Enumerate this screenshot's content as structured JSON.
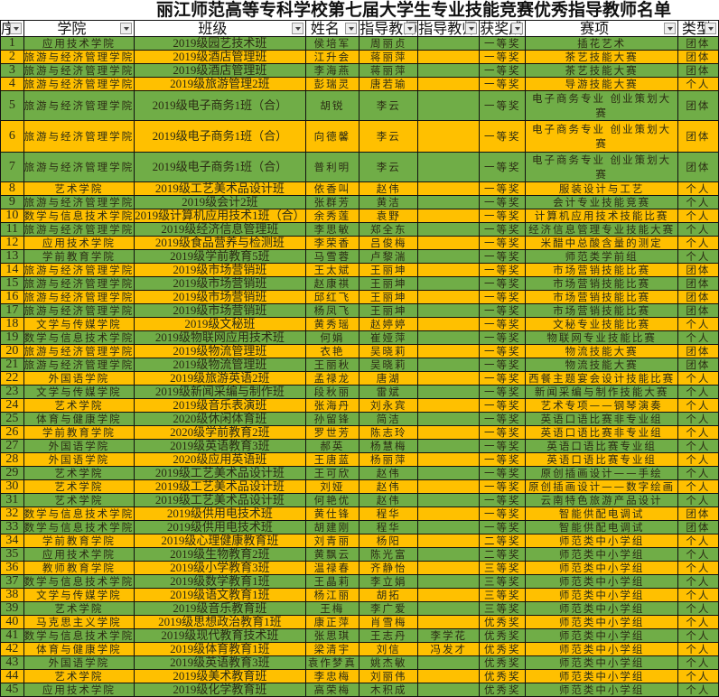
{
  "title": "丽江师范高等专科学校第七届大学生专业技能竞赛优秀指导教师名单",
  "colors": {
    "odd_row": "#70AD47",
    "even_row": "#FFC000"
  },
  "headers": [
    "序",
    "学院",
    "班级",
    "姓名",
    "指导教师",
    "指导教师",
    "获奖成",
    "赛项",
    "类型"
  ],
  "rows": [
    [
      "1",
      "应用技术学院",
      "2019级园艺技术班",
      "侯培军",
      "周丽贞",
      "",
      "一等奖",
      "插花艺术",
      "团体"
    ],
    [
      "2",
      "旅游与经济管理学院",
      "2019级酒店管理班",
      "江升会",
      "蒋丽萍",
      "",
      "一等奖",
      "茶艺技能大赛",
      "团体"
    ],
    [
      "3",
      "旅游与经济管理学院",
      "2019级酒店管理班",
      "李海燕",
      "蒋丽萍",
      "",
      "一等奖",
      "茶艺技能大赛",
      "团体"
    ],
    [
      "4",
      "旅游与经济管理学院",
      "2019级旅游管理2班",
      "彭瑞灵",
      "唐若瑜",
      "",
      "一等奖",
      "导游技能大赛",
      "个人"
    ],
    [
      "5",
      "旅游与经济管理学院",
      "2019级电子商务1班（合）",
      "胡锐",
      "李云",
      "",
      "一等奖",
      "电子商务专业 创业策划大赛",
      "团体"
    ],
    [
      "6",
      "旅游与经济管理学院",
      "2019级电子商务1班（合）",
      "向德馨",
      "李云",
      "",
      "一等奖",
      "电子商务专业 创业策划大赛",
      "团体"
    ],
    [
      "7",
      "旅游与经济管理学院",
      "2019级电子商务1班（合）",
      "普利明",
      "李云",
      "",
      "一等奖",
      "电子商务专业 创业策划大赛",
      "团体"
    ],
    [
      "8",
      "艺术学院",
      "2019级工艺美术品设计班",
      "依香叫",
      "赵伟",
      "",
      "一等奖",
      "服装设计与工艺",
      "个人"
    ],
    [
      "9",
      "旅游与经济管理学院",
      "2019级会计2班",
      "张群芳",
      "黄洁",
      "",
      "一等奖",
      "会计专业技能竞赛",
      "个人"
    ],
    [
      "10",
      "数学与信息技术学院",
      "2019级计算机应用技术1班（合）",
      "余秀莲",
      "袁野",
      "",
      "一等奖",
      "计算机应用技术技能比赛",
      "个人"
    ],
    [
      "11",
      "旅游与经济管理学院",
      "2019级经济信息管理班",
      "李思敏",
      "郑全东",
      "",
      "一等奖",
      "经济信息管理专业技能大赛",
      "个人"
    ],
    [
      "12",
      "应用技术学院",
      "2019级食品营养与检测班",
      "李荣香",
      "吕俊梅",
      "",
      "一等奖",
      "米醋中总酸含量的测定",
      "个人"
    ],
    [
      "13",
      "学前教育学院",
      "2019级学前教育5班",
      "马雪蓉",
      "卢黎湍",
      "",
      "一等奖",
      "师范类学前组",
      "个人"
    ],
    [
      "14",
      "旅游与经济管理学院",
      "2019级市场营销班",
      "王太斌",
      "王丽坤",
      "",
      "一等奖",
      "市场营销技能比赛",
      "团体"
    ],
    [
      "15",
      "旅游与经济管理学院",
      "2019级市场营销班",
      "赵康祺",
      "王丽坤",
      "",
      "一等奖",
      "市场营销技能比赛",
      "团体"
    ],
    [
      "16",
      "旅游与经济管理学院",
      "2019级市场营销班",
      "邱红飞",
      "王丽坤",
      "",
      "一等奖",
      "市场营销技能比赛",
      "团体"
    ],
    [
      "17",
      "旅游与经济管理学院",
      "2019级市场营销班",
      "杨凤飞",
      "王丽坤",
      "",
      "一等奖",
      "市场营销技能比赛",
      "团体"
    ],
    [
      "18",
      "文学与传媒学院",
      "2019级文秘班",
      "黄秀瑶",
      "赵婷婷",
      "",
      "一等奖",
      "文秘专业技能比赛",
      "个人"
    ],
    [
      "19",
      "数学与信息技术学院",
      "2019级物联网应用技术班",
      "何娟",
      "崔娅萍",
      "",
      "一等奖",
      "物联网专业技能比赛",
      "个人"
    ],
    [
      "20",
      "旅游与经济管理学院",
      "2019级物流管理班",
      "衣艳",
      "吴晓莉",
      "",
      "一等奖",
      "物流技能大赛",
      "团体"
    ],
    [
      "21",
      "旅游与经济管理学院",
      "2019级物流管理班",
      "王丽秋",
      "吴晓莉",
      "",
      "一等奖",
      "物流技能大赛",
      "团体"
    ],
    [
      "22",
      "外国语学院",
      "2019级旅游英语2班",
      "孟禄龙",
      "唐湖",
      "",
      "一等奖",
      "西餐主题宴会设计技能比赛",
      "个人"
    ],
    [
      "23",
      "文学与传媒学院",
      "2019级新闻采编与制作班",
      "段秋丽",
      "雷斌",
      "",
      "一等奖",
      "新闻采编与制作技能大赛",
      "个人"
    ],
    [
      "24",
      "艺术学院",
      "2019级音乐表演班",
      "张海丹",
      "刘永宾",
      "",
      "一等奖",
      "艺术专项——钢琴演奏",
      "个人"
    ],
    [
      "25",
      "体育与健康学院",
      "2020级休闲体育班",
      "孙留锋",
      "简洁",
      "",
      "一等奖",
      "英语口语比赛非专业组",
      "个人"
    ],
    [
      "26",
      "学前教育学院",
      "2020级学前教育2班",
      "罗世芳",
      "陈志玲",
      "",
      "一等奖",
      "英语口语比赛非专业组",
      "个人"
    ],
    [
      "27",
      "外国语学院",
      "2019级英语教育3班",
      "郝英",
      "杨慧梅",
      "",
      "一等奖",
      "英语口语比赛专业组",
      "个人"
    ],
    [
      "28",
      "外国语学院",
      "2020级应用英语班",
      "王唐蓝",
      "杨丽萍",
      "",
      "一等奖",
      "英语口语比赛专业组",
      "个人"
    ],
    [
      "29",
      "艺术学院",
      "2019级工艺美术品设计班",
      "王可欣",
      "赵伟",
      "",
      "一等奖",
      "原创插画设计——手绘",
      "个人"
    ],
    [
      "30",
      "艺术学院",
      "2019级工艺美术品设计班",
      "刘娅",
      "赵伟",
      "",
      "一等奖",
      "原创插画设计——数字绘画",
      "个人"
    ],
    [
      "31",
      "艺术学院",
      "2019级工艺美术品设计班",
      "何艳优",
      "赵伟",
      "",
      "一等奖",
      "云南特色旅游产品设计",
      "个人"
    ],
    [
      "32",
      "数学与信息技术学院",
      "2019级供用电技术班",
      "黄仕锋",
      "程华",
      "",
      "一等奖",
      "智能供配电调试",
      "团体"
    ],
    [
      "33",
      "数学与信息技术学院",
      "2019级供用电技术班",
      "胡建刚",
      "程华",
      "",
      "一等奖",
      "智能供配电调试",
      "团体"
    ],
    [
      "34",
      "学前教育学院",
      "2019级心理健康教育班",
      "刘青丽",
      "杨阳",
      "",
      "二等奖",
      "师范类中小学组",
      "个人"
    ],
    [
      "35",
      "应用技术学院",
      "2019级生物教育2班",
      "黄飘云",
      "陈光富",
      "",
      "二等奖",
      "师范类中小学组",
      "个人"
    ],
    [
      "36",
      "教师教育学院",
      "2019级小学教育3班",
      "温禄春",
      "齐静怡",
      "",
      "三等奖",
      "师范类中小学组",
      "个人"
    ],
    [
      "37",
      "数学与信息技术学院",
      "2019级数学教育1班",
      "王晶莉",
      "李立娟",
      "",
      "三等奖",
      "师范类中小学组",
      "个人"
    ],
    [
      "38",
      "文学与传媒学院",
      "2019级语文教育1班",
      "杨江丽",
      "胡拓",
      "",
      "三等奖",
      "师范类中小学组",
      "个人"
    ],
    [
      "39",
      "艺术学院",
      "2019级音乐教育班",
      "王梅",
      "李广爱",
      "",
      "三等奖",
      "师范类中小学组",
      "个人"
    ],
    [
      "40",
      "马克思主义学院",
      "2019级思想政治教育1班",
      "康正萍",
      "肖雪梅",
      "",
      "优秀奖",
      "师范类中小学组",
      "个人"
    ],
    [
      "41",
      "数学与信息技术学院",
      "2019级现代教育技术班",
      "张思琪",
      "王志丹",
      "李学花",
      "优秀奖",
      "师范类中小学组",
      "个人"
    ],
    [
      "42",
      "体育与健康学院",
      "2019级体育教育1班",
      "梁清宇",
      "刘信",
      "冯发才",
      "优秀奖",
      "师范类中小学组",
      "个人"
    ],
    [
      "43",
      "外国语学院",
      "2019级英语教育3班",
      "袁作梦真",
      "姚杰敏",
      "",
      "优秀奖",
      "师范类中小学组",
      "个人"
    ],
    [
      "44",
      "艺术学院",
      "2019级美术教育班",
      "李忠梅",
      "刘丽伟",
      "",
      "优秀奖",
      "师范类中小学组",
      "个人"
    ],
    [
      "45",
      "应用技术学院",
      "2019级化学教育班",
      "高荣梅",
      "木积成",
      "",
      "优秀奖",
      "师范类中小学组",
      "个人"
    ]
  ]
}
